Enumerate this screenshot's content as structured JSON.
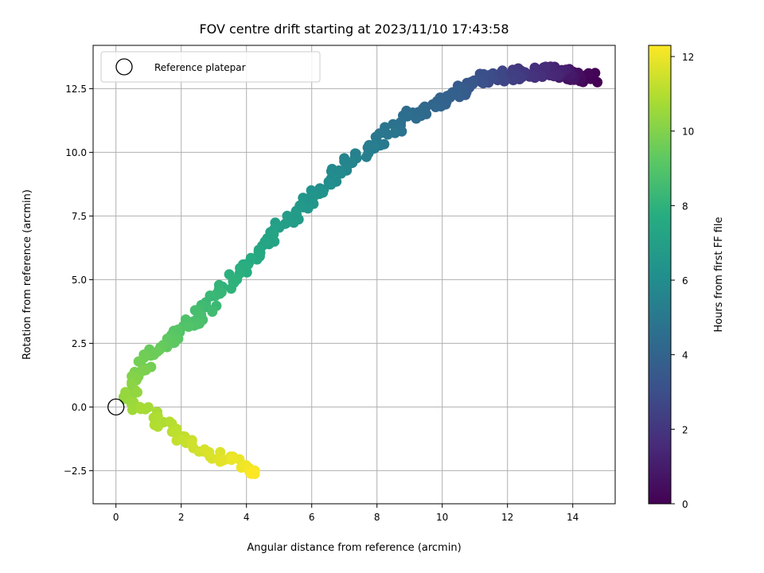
{
  "chart_data": {
    "type": "scatter",
    "title": "FOV centre drift starting at 2023/11/10 17:43:58",
    "xlabel": "Angular distance from reference (arcmin)",
    "ylabel": "Rotation from reference (arcmin)",
    "xlim": [
      -0.7,
      15.3
    ],
    "ylim": [
      -3.8,
      14.2
    ],
    "xticks": [
      0,
      2,
      4,
      6,
      8,
      10,
      12,
      14
    ],
    "yticks": [
      -2.5,
      0.0,
      2.5,
      5.0,
      7.5,
      10.0,
      12.5
    ],
    "grid": true,
    "legend": {
      "label": "Reference platepar",
      "placement": "top-left",
      "marker": "open-circle"
    },
    "reference_point": {
      "x": 0.0,
      "y": 0.0
    },
    "colorbar": {
      "label": "Hours from first FF file",
      "range": [
        0,
        12.3
      ],
      "ticks": [
        0,
        2,
        4,
        6,
        8,
        10,
        12
      ],
      "colormap": "viridis"
    },
    "path_keypoints": [
      {
        "t": 0.0,
        "x": 14.6,
        "y": 12.9
      },
      {
        "t": 0.5,
        "x": 14.0,
        "y": 13.0
      },
      {
        "t": 1.3,
        "x": 13.5,
        "y": 13.2
      },
      {
        "t": 2.0,
        "x": 12.5,
        "y": 13.1
      },
      {
        "t": 3.0,
        "x": 11.2,
        "y": 12.9
      },
      {
        "t": 3.8,
        "x": 10.3,
        "y": 12.2
      },
      {
        "t": 4.3,
        "x": 9.3,
        "y": 11.6
      },
      {
        "t": 4.8,
        "x": 8.5,
        "y": 10.9
      },
      {
        "t": 5.2,
        "x": 7.8,
        "y": 10.2
      },
      {
        "t": 5.8,
        "x": 6.8,
        "y": 9.2
      },
      {
        "t": 6.4,
        "x": 6.0,
        "y": 8.2
      },
      {
        "t": 7.0,
        "x": 5.0,
        "y": 7.0
      },
      {
        "t": 7.8,
        "x": 3.8,
        "y": 5.3
      },
      {
        "t": 8.4,
        "x": 2.9,
        "y": 4.0
      },
      {
        "t": 9.0,
        "x": 2.0,
        "y": 3.0
      },
      {
        "t": 9.6,
        "x": 1.0,
        "y": 1.9
      },
      {
        "t": 10.1,
        "x": 0.4,
        "y": 0.9
      },
      {
        "t": 10.5,
        "x": 0.5,
        "y": 0.2
      },
      {
        "t": 11.0,
        "x": 1.5,
        "y": -0.7
      },
      {
        "t": 11.5,
        "x": 2.6,
        "y": -1.7
      },
      {
        "t": 12.0,
        "x": 3.7,
        "y": -2.2
      },
      {
        "t": 12.3,
        "x": 4.2,
        "y": -2.5
      }
    ],
    "point_count": 380,
    "scatter_x": 0.22,
    "scatter_y": 0.2
  }
}
